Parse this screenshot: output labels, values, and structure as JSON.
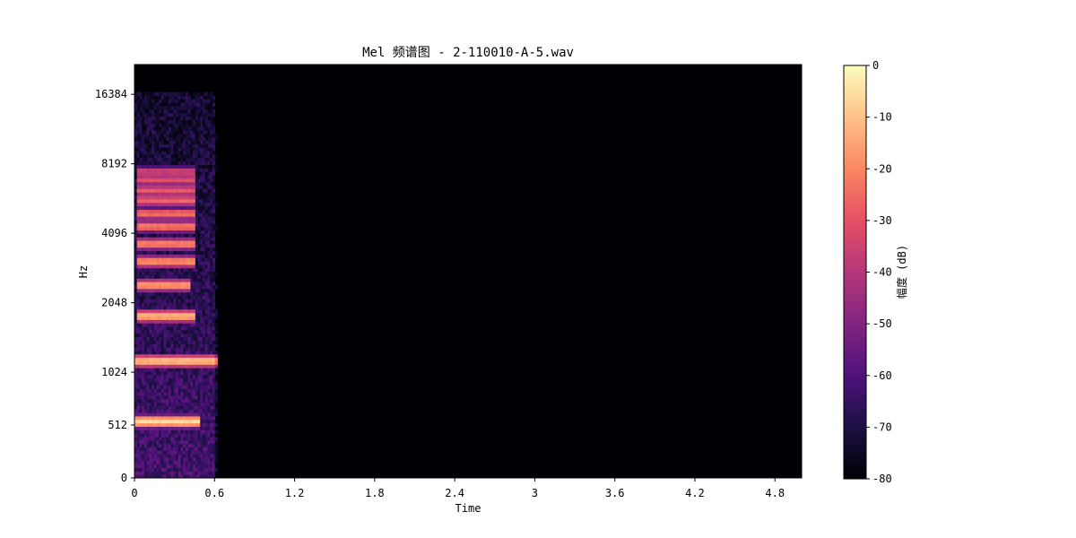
{
  "chart_data": {
    "type": "heatmap",
    "title": "Mel 频谱图 - 2-110010-A-5.wav",
    "xlabel": "Time",
    "ylabel": "Hz",
    "xlim": [
      0,
      5.0
    ],
    "x_ticks": [
      0,
      0.6,
      1.2,
      1.8,
      2.4,
      3.0,
      3.6,
      4.2,
      4.8
    ],
    "x_tick_labels": [
      "0",
      "0.6",
      "1.2",
      "1.8",
      "2.4",
      "3",
      "3.6",
      "4.2",
      "4.8"
    ],
    "y_scale": "mel",
    "ylim_hz": [
      0,
      22050
    ],
    "y_ticks": [
      0,
      512,
      1024,
      2048,
      4096,
      8192,
      16384
    ],
    "y_tick_labels": [
      "0",
      "512",
      "1024",
      "2048",
      "4096",
      "8192",
      "16384"
    ],
    "colormap": "magma",
    "colorbar": {
      "label": "幅度 (dB)",
      "range": [
        -80,
        0
      ],
      "ticks": [
        0,
        -10,
        -20,
        -30,
        -40,
        -50,
        -60,
        -70,
        -80
      ],
      "tick_labels": [
        "0",
        "-10",
        "-20",
        "-30",
        "-40",
        "-50",
        "-60",
        "-70",
        "-80"
      ]
    },
    "signal_duration_s": 0.62,
    "harmonic_bands": [
      {
        "freq_hz": 550,
        "t_start": 0.0,
        "t_end": 0.5,
        "db": -6
      },
      {
        "freq_hz": 1150,
        "t_start": 0.0,
        "t_end": 0.62,
        "db": -10
      },
      {
        "freq_hz": 1800,
        "t_start": 0.02,
        "t_end": 0.45,
        "db": -12
      },
      {
        "freq_hz": 2450,
        "t_start": 0.02,
        "t_end": 0.42,
        "db": -16
      },
      {
        "freq_hz": 3100,
        "t_start": 0.02,
        "t_end": 0.45,
        "db": -18
      },
      {
        "freq_hz": 3700,
        "t_start": 0.02,
        "t_end": 0.45,
        "db": -20
      },
      {
        "freq_hz": 4400,
        "t_start": 0.02,
        "t_end": 0.45,
        "db": -22
      },
      {
        "freq_hz": 5000,
        "t_start": 0.02,
        "t_end": 0.45,
        "db": -24
      },
      {
        "freq_hz": 5700,
        "t_start": 0.02,
        "t_end": 0.45,
        "db": -26
      },
      {
        "freq_hz": 6300,
        "t_start": 0.02,
        "t_end": 0.45,
        "db": -28
      },
      {
        "freq_hz": 7000,
        "t_start": 0.02,
        "t_end": 0.45,
        "db": -30
      },
      {
        "freq_hz": 7600,
        "t_start": 0.02,
        "t_end": 0.45,
        "db": -34
      }
    ]
  }
}
